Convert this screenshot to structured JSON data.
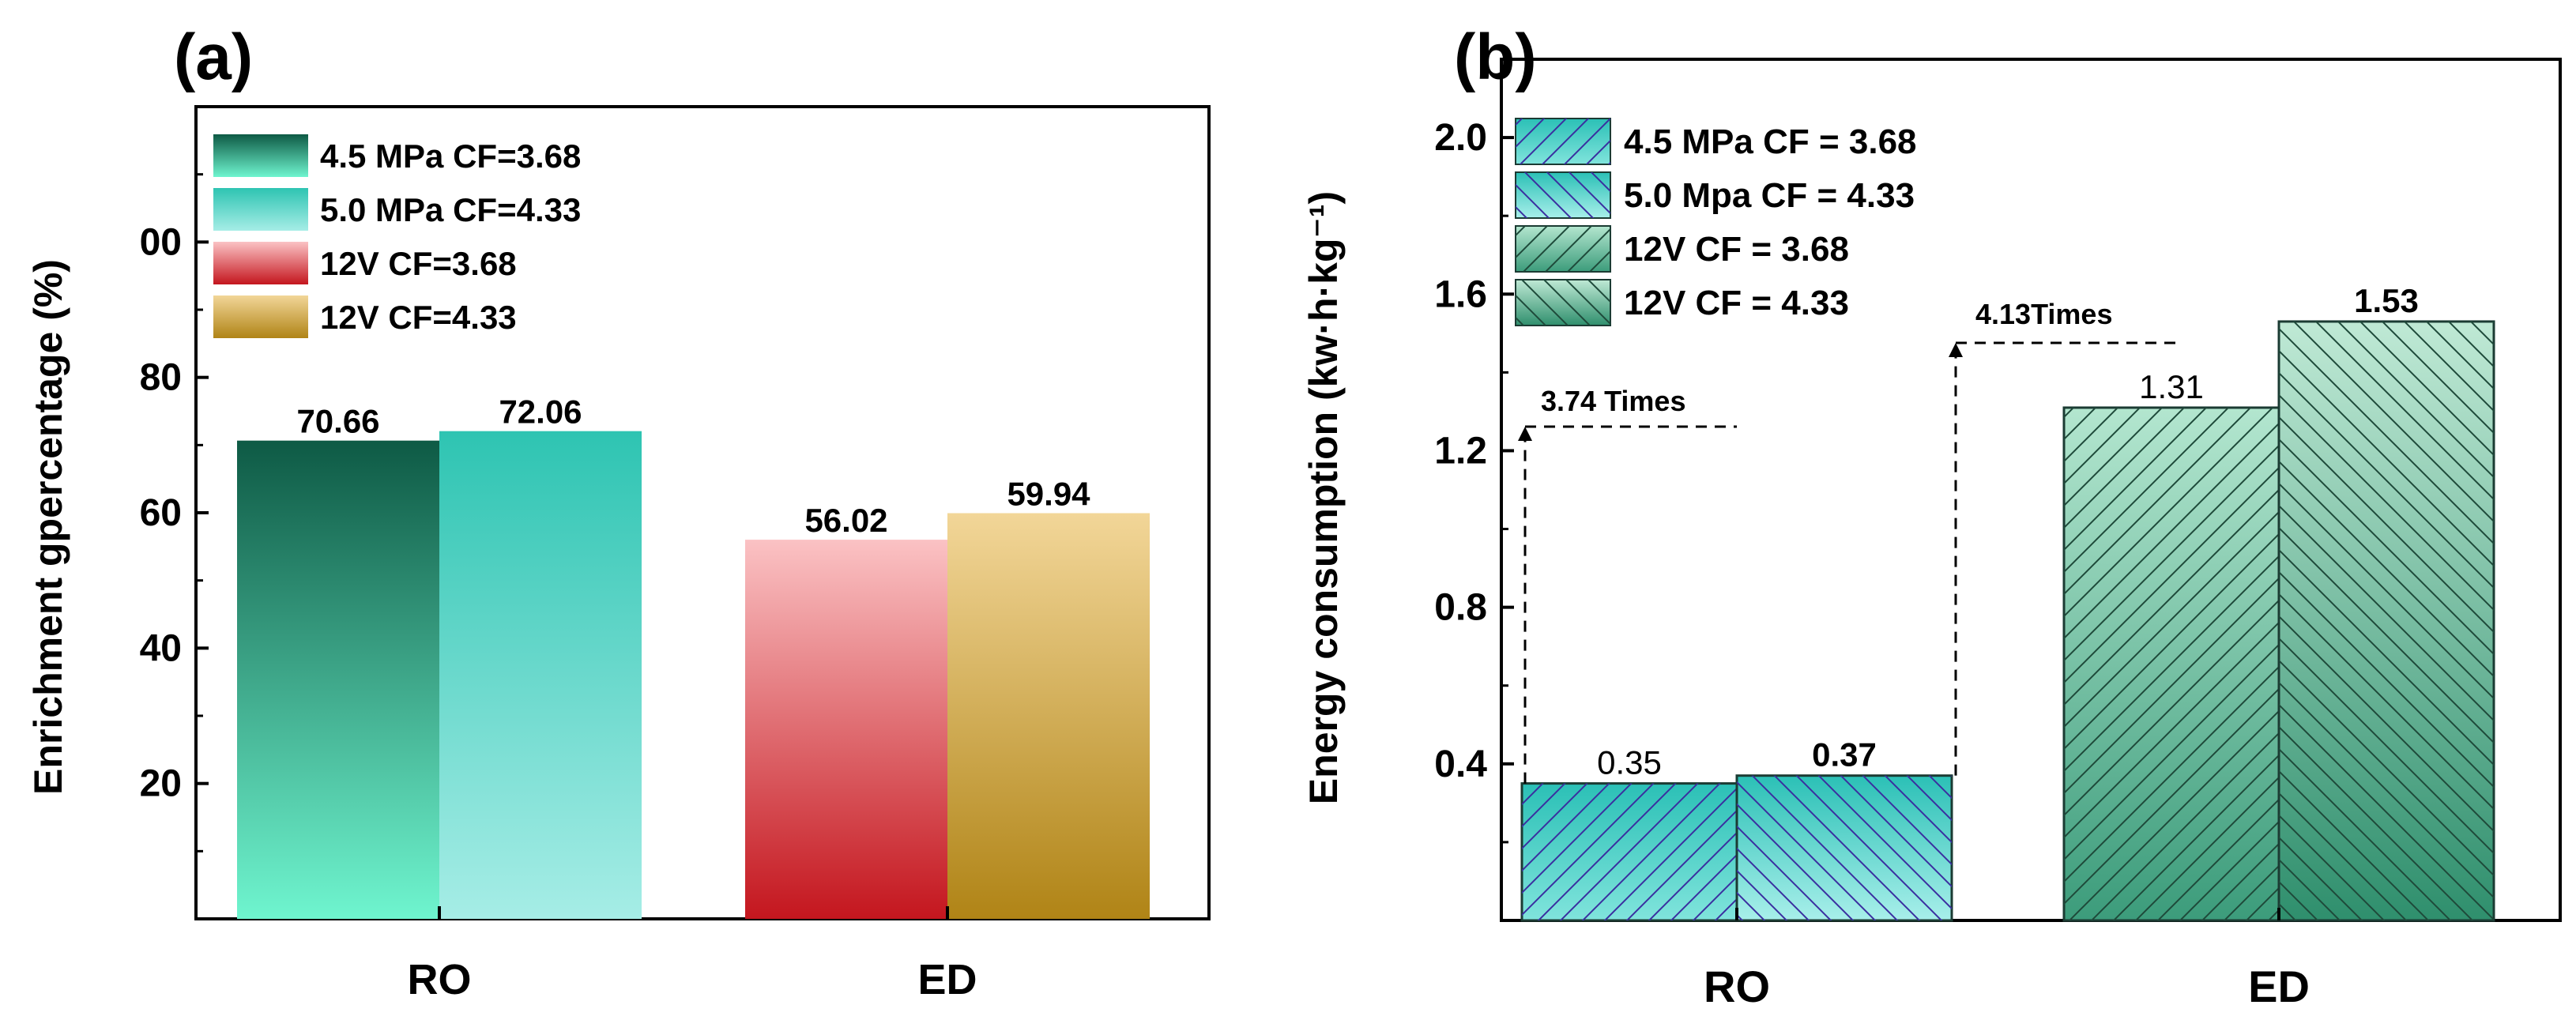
{
  "chart_data": [
    {
      "panel_label": "(a)",
      "type": "bar",
      "categories": [
        "RO",
        "ED"
      ],
      "ylabel": "Enrichment gpercentage (%)",
      "ylim": [
        0,
        120
      ],
      "yticks": [
        20,
        40,
        60,
        80,
        "00"
      ],
      "legend_position": "top-left",
      "series": [
        {
          "name": "4.5 MPa CF=3.68",
          "category": "RO",
          "value": 70.66,
          "label": "70.66",
          "color_top": "#0e5a45",
          "color_bottom": "#6ff5cf"
        },
        {
          "name": "5.0 MPa CF=4.33",
          "category": "RO",
          "value": 72.06,
          "label": "72.06",
          "color_top": "#2ec4b2",
          "color_bottom": "#a6ede6"
        },
        {
          "name": "12V CF=3.68",
          "category": "ED",
          "value": 56.02,
          "label": "56.02",
          "color_top": "#fbc2c4",
          "color_bottom": "#c4161e"
        },
        {
          "name": "12V CF=4.33",
          "category": "ED",
          "value": 59.94,
          "label": "59.94",
          "color_top": "#f2d698",
          "color_bottom": "#b08416"
        }
      ]
    },
    {
      "panel_label": "(b)",
      "type": "bar",
      "categories": [
        "RO",
        "ED"
      ],
      "ylabel": "Energy consumption (kw·h·kg⁻¹)",
      "ylim": [
        0,
        2.2
      ],
      "yticks": [
        "0.4",
        "0.8",
        "1.2",
        "1.6",
        "2.0"
      ],
      "legend_position": "top-left",
      "series": [
        {
          "name": "4.5 MPa CF = 3.68",
          "category": "RO",
          "value": 0.35,
          "label": "0.35",
          "color_top": "#2bc0b6",
          "color_bottom": "#80e4dc",
          "hatch": "forward",
          "hatch_color": "#3a2fa0"
        },
        {
          "name": "5.0 Mpa CF = 4.33",
          "category": "RO",
          "value": 0.37,
          "label": "0.37",
          "color_top": "#2bc0b6",
          "color_bottom": "#a8efea",
          "hatch": "back",
          "hatch_color": "#3a2fa0"
        },
        {
          "name": "12V CF = 3.68",
          "category": "ED",
          "value": 1.31,
          "label": "1.31",
          "color_top": "#b3e6cf",
          "color_bottom": "#3c9c7b",
          "hatch": "forward",
          "hatch_color": "#1e4a3a"
        },
        {
          "name": "12V CF = 4.33",
          "category": "ED",
          "value": 1.53,
          "label": "1.53",
          "color_top": "#bfe9d5",
          "color_bottom": "#2f8f6d",
          "hatch": "back",
          "hatch_color": "#1e4a3a"
        }
      ],
      "annotations": [
        {
          "text": "3.74 Times"
        },
        {
          "text": "4.13Times"
        }
      ]
    }
  ]
}
